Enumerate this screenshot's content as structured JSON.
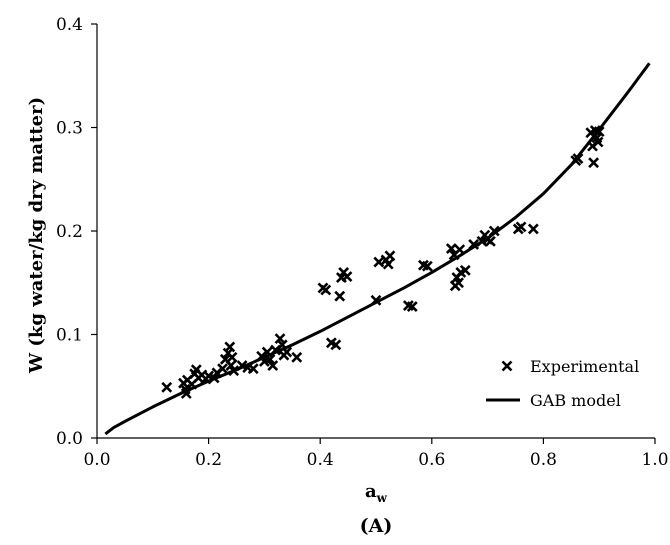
{
  "chart_data": {
    "type": "scatter",
    "panel_label": "(A)",
    "xlabel": "a",
    "xlabel_sub": "w",
    "ylabel": "W  (kg water/kg dry matter)",
    "xlim": [
      0.0,
      1.0
    ],
    "ylim": [
      0.0,
      0.4
    ],
    "x_ticks": [
      "0.0",
      "0.2",
      "0.4",
      "0.6",
      "0.8",
      "1.0"
    ],
    "y_ticks": [
      "0.0",
      "0.1",
      "0.2",
      "0.3",
      "0.4"
    ],
    "grid": false,
    "legend_position": "bottom-right",
    "series": [
      {
        "name": "Experimental",
        "kind": "scatter",
        "marker": "x",
        "color": "#000000",
        "points": [
          [
            0.125,
            0.049
          ],
          [
            0.155,
            0.053
          ],
          [
            0.158,
            0.047
          ],
          [
            0.16,
            0.043
          ],
          [
            0.162,
            0.056
          ],
          [
            0.17,
            0.052
          ],
          [
            0.175,
            0.062
          ],
          [
            0.178,
            0.066
          ],
          [
            0.182,
            0.058
          ],
          [
            0.188,
            0.061
          ],
          [
            0.195,
            0.057
          ],
          [
            0.2,
            0.06
          ],
          [
            0.21,
            0.058
          ],
          [
            0.215,
            0.063
          ],
          [
            0.225,
            0.067
          ],
          [
            0.23,
            0.076
          ],
          [
            0.235,
            0.082
          ],
          [
            0.238,
            0.088
          ],
          [
            0.24,
            0.07
          ],
          [
            0.242,
            0.078
          ],
          [
            0.245,
            0.065
          ],
          [
            0.26,
            0.07
          ],
          [
            0.27,
            0.068
          ],
          [
            0.28,
            0.067
          ],
          [
            0.295,
            0.079
          ],
          [
            0.3,
            0.074
          ],
          [
            0.305,
            0.083
          ],
          [
            0.31,
            0.076
          ],
          [
            0.315,
            0.07
          ],
          [
            0.32,
            0.085
          ],
          [
            0.328,
            0.096
          ],
          [
            0.332,
            0.09
          ],
          [
            0.335,
            0.08
          ],
          [
            0.34,
            0.083
          ],
          [
            0.358,
            0.078
          ],
          [
            0.405,
            0.145
          ],
          [
            0.41,
            0.143
          ],
          [
            0.42,
            0.092
          ],
          [
            0.428,
            0.09
          ],
          [
            0.435,
            0.137
          ],
          [
            0.438,
            0.155
          ],
          [
            0.442,
            0.16
          ],
          [
            0.448,
            0.156
          ],
          [
            0.5,
            0.133
          ],
          [
            0.505,
            0.17
          ],
          [
            0.518,
            0.172
          ],
          [
            0.522,
            0.168
          ],
          [
            0.525,
            0.176
          ],
          [
            0.558,
            0.128
          ],
          [
            0.565,
            0.127
          ],
          [
            0.585,
            0.167
          ],
          [
            0.592,
            0.166
          ],
          [
            0.635,
            0.183
          ],
          [
            0.64,
            0.177
          ],
          [
            0.642,
            0.147
          ],
          [
            0.645,
            0.155
          ],
          [
            0.648,
            0.15
          ],
          [
            0.65,
            0.182
          ],
          [
            0.652,
            0.16
          ],
          [
            0.66,
            0.162
          ],
          [
            0.675,
            0.187
          ],
          [
            0.69,
            0.19
          ],
          [
            0.695,
            0.196
          ],
          [
            0.7,
            0.192
          ],
          [
            0.705,
            0.19
          ],
          [
            0.712,
            0.2
          ],
          [
            0.755,
            0.202
          ],
          [
            0.76,
            0.204
          ],
          [
            0.782,
            0.202
          ],
          [
            0.858,
            0.268
          ],
          [
            0.862,
            0.27
          ],
          [
            0.885,
            0.295
          ],
          [
            0.888,
            0.282
          ],
          [
            0.89,
            0.266
          ],
          [
            0.893,
            0.297
          ],
          [
            0.896,
            0.29
          ],
          [
            0.898,
            0.286
          ],
          [
            0.9,
            0.296
          ]
        ]
      },
      {
        "name": "GAB model",
        "kind": "line",
        "color": "#000000",
        "points": [
          [
            0.015,
            0.004
          ],
          [
            0.03,
            0.01
          ],
          [
            0.05,
            0.016
          ],
          [
            0.1,
            0.03
          ],
          [
            0.15,
            0.043
          ],
          [
            0.2,
            0.055
          ],
          [
            0.25,
            0.066
          ],
          [
            0.3,
            0.078
          ],
          [
            0.35,
            0.09
          ],
          [
            0.4,
            0.103
          ],
          [
            0.45,
            0.117
          ],
          [
            0.5,
            0.131
          ],
          [
            0.55,
            0.145
          ],
          [
            0.6,
            0.16
          ],
          [
            0.65,
            0.176
          ],
          [
            0.7,
            0.193
          ],
          [
            0.75,
            0.213
          ],
          [
            0.8,
            0.236
          ],
          [
            0.85,
            0.264
          ],
          [
            0.9,
            0.298
          ],
          [
            0.95,
            0.333
          ],
          [
            0.99,
            0.362
          ]
        ]
      }
    ]
  }
}
